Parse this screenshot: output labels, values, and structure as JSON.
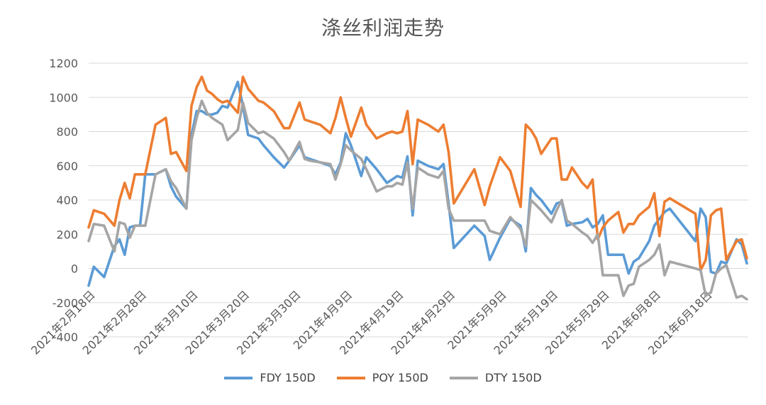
{
  "chart_data": {
    "type": "line",
    "title": "涤丝利润走势",
    "xlabel": "",
    "ylabel": "",
    "ylim": [
      -400,
      1200
    ],
    "yticks": [
      1200,
      1000,
      800,
      600,
      400,
      200,
      0,
      -200,
      -400
    ],
    "grid": true,
    "legend_position": "bottom",
    "x_tick_labels": [
      "2021年2月18日",
      "2021年2月28日",
      "2021年3月10日",
      "2021年3月20日",
      "2021年3月30日",
      "2021年4月9日",
      "2021年4月19日",
      "2021年4月29日",
      "2021年5月9日",
      "2021年5月19日",
      "2021年5月29日",
      "2021年6月8日",
      "2021年6月18日"
    ],
    "x": [
      "2021-02-18",
      "2021-02-19",
      "2021-02-21",
      "2021-02-23",
      "2021-02-24",
      "2021-02-25",
      "2021-02-26",
      "2021-02-27",
      "2021-02-28",
      "2021-03-01",
      "2021-03-03",
      "2021-03-05",
      "2021-03-06",
      "2021-03-07",
      "2021-03-09",
      "2021-03-10",
      "2021-03-11",
      "2021-03-12",
      "2021-03-13",
      "2021-03-14",
      "2021-03-15",
      "2021-03-16",
      "2021-03-17",
      "2021-03-19",
      "2021-03-20",
      "2021-03-21",
      "2021-03-23",
      "2021-03-24",
      "2021-03-26",
      "2021-03-28",
      "2021-03-29",
      "2021-03-31",
      "2021-04-01",
      "2021-04-02",
      "2021-04-04",
      "2021-04-06",
      "2021-04-07",
      "2021-04-08",
      "2021-04-09",
      "2021-04-10",
      "2021-04-12",
      "2021-04-13",
      "2021-04-15",
      "2021-04-17",
      "2021-04-18",
      "2021-04-19",
      "2021-04-20",
      "2021-04-21",
      "2021-04-22",
      "2021-04-23",
      "2021-04-25",
      "2021-04-27",
      "2021-04-28",
      "2021-04-29",
      "2021-04-30",
      "2021-05-04",
      "2021-05-06",
      "2021-05-07",
      "2021-05-09",
      "2021-05-11",
      "2021-05-13",
      "2021-05-14",
      "2021-05-15",
      "2021-05-16",
      "2021-05-17",
      "2021-05-19",
      "2021-05-20",
      "2021-05-21",
      "2021-05-22",
      "2021-05-23",
      "2021-05-25",
      "2021-05-26",
      "2021-05-27",
      "2021-05-28",
      "2021-05-29",
      "2021-05-30",
      "2021-06-01",
      "2021-06-02",
      "2021-06-03",
      "2021-06-04",
      "2021-06-05",
      "2021-06-07",
      "2021-06-08",
      "2021-06-09",
      "2021-06-10",
      "2021-06-11",
      "2021-06-16",
      "2021-06-17",
      "2021-06-18",
      "2021-06-19",
      "2021-06-20",
      "2021-06-21",
      "2021-06-22",
      "2021-06-24",
      "2021-06-25",
      "2021-06-26"
    ],
    "series": [
      {
        "name": "FDY 150D",
        "color": "#5b9bd5",
        "values": [
          -100,
          10,
          -50,
          130,
          170,
          80,
          240,
          250,
          250,
          550,
          550,
          580,
          480,
          420,
          350,
          780,
          920,
          920,
          900,
          900,
          910,
          950,
          940,
          1090,
          950,
          780,
          760,
          720,
          650,
          590,
          630,
          720,
          650,
          640,
          620,
          600,
          550,
          620,
          790,
          720,
          540,
          650,
          580,
          500,
          520,
          540,
          530,
          655,
          310,
          630,
          600,
          580,
          610,
          380,
          120,
          250,
          190,
          50,
          180,
          290,
          250,
          100,
          470,
          430,
          400,
          320,
          380,
          390,
          250,
          260,
          270,
          290,
          240,
          260,
          310,
          80,
          80,
          80,
          -30,
          40,
          60,
          160,
          250,
          290,
          330,
          350,
          160,
          350,
          300,
          -20,
          -30,
          40,
          30,
          170,
          140,
          30
        ]
      },
      {
        "name": "POY 150D",
        "color": "#ed7d31",
        "values": [
          240,
          340,
          320,
          250,
          400,
          500,
          410,
          550,
          550,
          550,
          840,
          880,
          670,
          680,
          570,
          950,
          1060,
          1120,
          1040,
          1020,
          990,
          970,
          980,
          910,
          1120,
          1050,
          980,
          970,
          920,
          820,
          820,
          970,
          870,
          860,
          840,
          790,
          880,
          1000,
          880,
          770,
          940,
          840,
          760,
          790,
          800,
          790,
          800,
          920,
          610,
          870,
          840,
          800,
          840,
          680,
          380,
          580,
          370,
          480,
          650,
          570,
          360,
          840,
          810,
          760,
          670,
          760,
          760,
          520,
          520,
          590,
          500,
          470,
          520,
          170,
          240,
          280,
          330,
          210,
          260,
          260,
          310,
          360,
          440,
          190,
          390,
          410,
          320,
          -10,
          50,
          310,
          340,
          350,
          50,
          160,
          170,
          60
        ]
      },
      {
        "name": "DTY 150D",
        "color": "#a5a5a5",
        "values": [
          160,
          260,
          250,
          100,
          270,
          260,
          180,
          250,
          250,
          250,
          550,
          580,
          510,
          470,
          350,
          750,
          880,
          980,
          910,
          880,
          860,
          840,
          750,
          810,
          970,
          850,
          790,
          800,
          760,
          680,
          630,
          740,
          640,
          630,
          620,
          610,
          520,
          610,
          720,
          690,
          640,
          580,
          450,
          480,
          480,
          500,
          490,
          620,
          350,
          590,
          550,
          530,
          570,
          350,
          280,
          280,
          280,
          220,
          200,
          300,
          230,
          130,
          400,
          370,
          340,
          270,
          340,
          400,
          280,
          260,
          210,
          190,
          150,
          200,
          -40,
          -40,
          -40,
          -160,
          -100,
          -90,
          10,
          50,
          80,
          140,
          -40,
          40,
          0,
          -10,
          -160,
          -140,
          -30,
          0,
          20,
          -170,
          -160,
          -180
        ]
      }
    ]
  }
}
